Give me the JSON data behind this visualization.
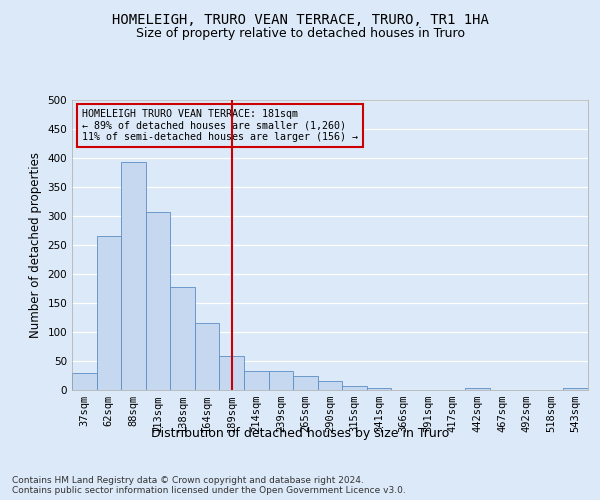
{
  "title": "HOMELEIGH, TRURO VEAN TERRACE, TRURO, TR1 1HA",
  "subtitle": "Size of property relative to detached houses in Truro",
  "xlabel": "Distribution of detached houses by size in Truro",
  "ylabel": "Number of detached properties",
  "bar_color": "#c5d8f0",
  "bar_edge_color": "#5b8ec4",
  "categories": [
    "37sqm",
    "62sqm",
    "88sqm",
    "113sqm",
    "138sqm",
    "164sqm",
    "189sqm",
    "214sqm",
    "239sqm",
    "265sqm",
    "290sqm",
    "315sqm",
    "341sqm",
    "366sqm",
    "391sqm",
    "417sqm",
    "442sqm",
    "467sqm",
    "492sqm",
    "518sqm",
    "543sqm"
  ],
  "values": [
    30,
    265,
    393,
    307,
    178,
    115,
    58,
    33,
    33,
    25,
    15,
    7,
    4,
    0,
    0,
    0,
    4,
    0,
    0,
    0,
    4
  ],
  "ylim": [
    0,
    500
  ],
  "yticks": [
    0,
    50,
    100,
    150,
    200,
    250,
    300,
    350,
    400,
    450,
    500
  ],
  "vline_x": 6,
  "vline_color": "#cc0000",
  "annotation_text": "HOMELEIGH TRURO VEAN TERRACE: 181sqm\n← 89% of detached houses are smaller (1,260)\n11% of semi-detached houses are larger (156) →",
  "annotation_box_color": "#cc0000",
  "footer": "Contains HM Land Registry data © Crown copyright and database right 2024.\nContains public sector information licensed under the Open Government Licence v3.0.",
  "background_color": "#dce9f8",
  "grid_color": "#ffffff",
  "title_fontsize": 10,
  "subtitle_fontsize": 9,
  "tick_fontsize": 7.5,
  "ylabel_fontsize": 8.5,
  "xlabel_fontsize": 9,
  "footer_fontsize": 6.5
}
